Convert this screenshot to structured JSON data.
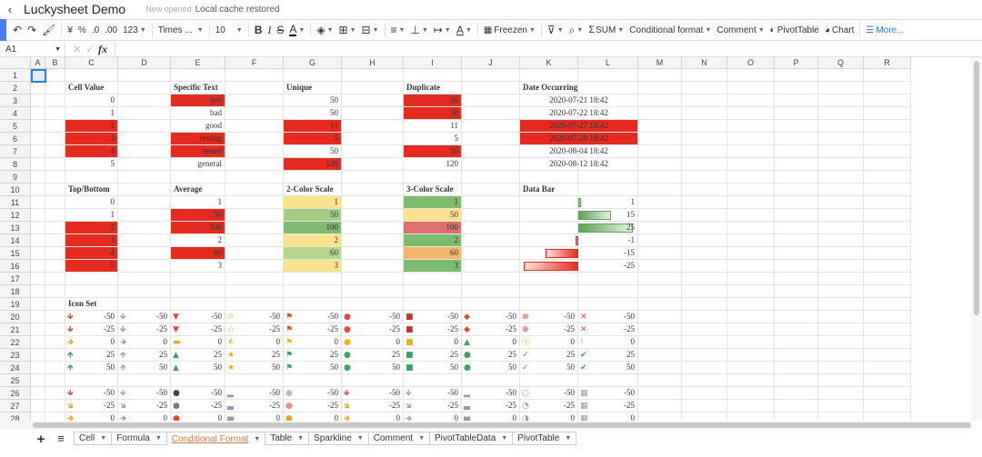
{
  "app": {
    "title": "Luckysheet Demo",
    "status_saved": "New opened",
    "status_cache": "Local cache restored"
  },
  "toolbar": {
    "currency": "¥",
    "percent": "%",
    "dec_less": ".0",
    "dec_more": ".00",
    "num_format": "123",
    "font": "Times ...",
    "size": "10",
    "bold": "B",
    "italic": "I",
    "strike": "S",
    "font_color": "A",
    "text_rotate": "A",
    "freeze": "Freezen",
    "sum": "SUM",
    "cond_format": "Conditional format",
    "comment": "Comment",
    "pivot": "PivotTable",
    "chart": "Chart",
    "more": "More..."
  },
  "formula_bar": {
    "cell_ref": "A1",
    "fx": "fx",
    "value": ""
  },
  "columns": [
    "A",
    "B",
    "C",
    "D",
    "E",
    "F",
    "G",
    "H",
    "I",
    "J",
    "K",
    "L",
    "M",
    "N",
    "O",
    "P",
    "Q",
    "R"
  ],
  "rows": [
    "1",
    "2",
    "3",
    "4",
    "5",
    "6",
    "7",
    "8",
    "9",
    "10",
    "11",
    "12",
    "13",
    "14",
    "15",
    "16",
    "17",
    "18",
    "19",
    "20",
    "21",
    "22",
    "23",
    "24",
    "25",
    "26",
    "27",
    "28"
  ],
  "colors": {
    "red": "#e52b20",
    "light_green": "#b6d78b",
    "green": "#7dbb6e",
    "yellow": "#fbe28f",
    "orange": "#f5b56c",
    "mid_green": "#a6cc83",
    "pink_red": "#e0706b",
    "sel": "#2d7be5"
  },
  "cells": [
    {
      "r": 2,
      "c": "C",
      "v": "Cell Value",
      "bold": true
    },
    {
      "r": 2,
      "c": "E",
      "v": "Specific Text",
      "bold": true
    },
    {
      "r": 2,
      "c": "G",
      "v": "Unique",
      "bold": true
    },
    {
      "r": 2,
      "c": "I",
      "v": "Duplicate",
      "bold": true
    },
    {
      "r": 2,
      "c": "K",
      "v": "Date Occurring",
      "bold": true
    },
    {
      "r": 3,
      "c": "C",
      "v": "0",
      "align": "r"
    },
    {
      "r": 4,
      "c": "C",
      "v": "1",
      "align": "r"
    },
    {
      "r": 5,
      "c": "C",
      "v": "2",
      "align": "r",
      "bg": "red"
    },
    {
      "r": 6,
      "c": "C",
      "v": "3",
      "align": "r",
      "bg": "red"
    },
    {
      "r": 7,
      "c": "C",
      "v": "4",
      "align": "r",
      "bg": "red"
    },
    {
      "r": 8,
      "c": "C",
      "v": "5",
      "align": "r"
    },
    {
      "r": 3,
      "c": "E",
      "v": "test",
      "align": "r",
      "bg": "red"
    },
    {
      "r": 4,
      "c": "E",
      "v": "bad",
      "align": "r"
    },
    {
      "r": 5,
      "c": "E",
      "v": "good",
      "align": "r"
    },
    {
      "r": 6,
      "c": "E",
      "v": "testing",
      "align": "r",
      "bg": "red"
    },
    {
      "r": 7,
      "c": "E",
      "v": "tested",
      "align": "r",
      "bg": "red"
    },
    {
      "r": 8,
      "c": "E",
      "v": "general",
      "align": "r"
    },
    {
      "r": 3,
      "c": "G",
      "v": "50",
      "align": "r"
    },
    {
      "r": 4,
      "c": "G",
      "v": "50",
      "align": "r"
    },
    {
      "r": 5,
      "c": "G",
      "v": "11",
      "align": "r",
      "bg": "red"
    },
    {
      "r": 6,
      "c": "G",
      "v": "5",
      "align": "r",
      "bg": "red"
    },
    {
      "r": 7,
      "c": "G",
      "v": "50",
      "align": "r"
    },
    {
      "r": 8,
      "c": "G",
      "v": "120",
      "align": "r",
      "bg": "red"
    },
    {
      "r": 3,
      "c": "I",
      "v": "50",
      "align": "r",
      "bg": "red"
    },
    {
      "r": 4,
      "c": "I",
      "v": "50",
      "align": "r",
      "bg": "red"
    },
    {
      "r": 5,
      "c": "I",
      "v": "11",
      "align": "r"
    },
    {
      "r": 6,
      "c": "I",
      "v": "5",
      "align": "r"
    },
    {
      "r": 7,
      "c": "I",
      "v": "50",
      "align": "r",
      "bg": "red"
    },
    {
      "r": 8,
      "c": "I",
      "v": "120",
      "align": "r"
    },
    {
      "r": 3,
      "c": "K",
      "v": "2020-07-21 18:42",
      "align": "c",
      "span": 2
    },
    {
      "r": 4,
      "c": "K",
      "v": "2020-07-22 18:42",
      "align": "c",
      "span": 2
    },
    {
      "r": 5,
      "c": "K",
      "v": "2020-07-27 18:42",
      "align": "c",
      "span": 2,
      "bg": "red"
    },
    {
      "r": 6,
      "c": "K",
      "v": "2020-07-28 18:42",
      "align": "c",
      "span": 2,
      "bg": "red"
    },
    {
      "r": 7,
      "c": "K",
      "v": "2020-08-04 18:42",
      "align": "c",
      "span": 2
    },
    {
      "r": 8,
      "c": "K",
      "v": "2020-08-12 18:42",
      "align": "c",
      "span": 2
    },
    {
      "r": 10,
      "c": "C",
      "v": "Top/Bottom",
      "bold": true
    },
    {
      "r": 10,
      "c": "E",
      "v": "Average",
      "bold": true
    },
    {
      "r": 10,
      "c": "G",
      "v": "2-Color Scale",
      "bold": true
    },
    {
      "r": 10,
      "c": "I",
      "v": "3-Color Scale",
      "bold": true
    },
    {
      "r": 10,
      "c": "K",
      "v": "Data Bar",
      "bold": true
    },
    {
      "r": 11,
      "c": "C",
      "v": "0",
      "align": "r"
    },
    {
      "r": 12,
      "c": "C",
      "v": "1",
      "align": "r"
    },
    {
      "r": 13,
      "c": "C",
      "v": "2",
      "align": "r",
      "bg": "red"
    },
    {
      "r": 14,
      "c": "C",
      "v": "3",
      "align": "r",
      "bg": "red"
    },
    {
      "r": 15,
      "c": "C",
      "v": "4",
      "align": "r",
      "bg": "red"
    },
    {
      "r": 16,
      "c": "C",
      "v": "5",
      "align": "r",
      "bg": "red"
    },
    {
      "r": 11,
      "c": "E",
      "v": "1",
      "align": "r"
    },
    {
      "r": 12,
      "c": "E",
      "v": "50",
      "align": "r",
      "bg": "red"
    },
    {
      "r": 13,
      "c": "E",
      "v": "100",
      "align": "r",
      "bg": "red"
    },
    {
      "r": 14,
      "c": "E",
      "v": "2",
      "align": "r"
    },
    {
      "r": 15,
      "c": "E",
      "v": "60",
      "align": "r",
      "bg": "red"
    },
    {
      "r": 16,
      "c": "E",
      "v": "3",
      "align": "r"
    },
    {
      "r": 11,
      "c": "G",
      "v": "1",
      "align": "r",
      "bg": "yellow"
    },
    {
      "r": 12,
      "c": "G",
      "v": "50",
      "align": "r",
      "bg": "mid_green"
    },
    {
      "r": 13,
      "c": "G",
      "v": "100",
      "align": "r",
      "bg": "green"
    },
    {
      "r": 14,
      "c": "G",
      "v": "2",
      "align": "r",
      "bg": "yellow"
    },
    {
      "r": 15,
      "c": "G",
      "v": "60",
      "align": "r",
      "bg": "light_green"
    },
    {
      "r": 16,
      "c": "G",
      "v": "3",
      "align": "r",
      "bg": "yellow"
    },
    {
      "r": 11,
      "c": "I",
      "v": "1",
      "align": "r",
      "bg": "green"
    },
    {
      "r": 12,
      "c": "I",
      "v": "50",
      "align": "r",
      "bg": "yellow"
    },
    {
      "r": 13,
      "c": "I",
      "v": "100",
      "align": "r",
      "bg": "pink_red"
    },
    {
      "r": 14,
      "c": "I",
      "v": "2",
      "align": "r",
      "bg": "green"
    },
    {
      "r": 15,
      "c": "I",
      "v": "60",
      "align": "r",
      "bg": "orange"
    },
    {
      "r": 16,
      "c": "I",
      "v": "3",
      "align": "r",
      "bg": "green"
    },
    {
      "r": 11,
      "c": "L",
      "v": "1",
      "align": "r",
      "bar": 1
    },
    {
      "r": 12,
      "c": "L",
      "v": "15",
      "align": "r",
      "bar": 15
    },
    {
      "r": 13,
      "c": "L",
      "v": "25",
      "align": "r",
      "bar": 25
    },
    {
      "r": 14,
      "c": "L",
      "v": "-1",
      "align": "r",
      "bar": -1
    },
    {
      "r": 15,
      "c": "L",
      "v": "-15",
      "align": "r",
      "bar": -15
    },
    {
      "r": 16,
      "c": "L",
      "v": "-25",
      "align": "r",
      "bar": -25
    },
    {
      "r": 19,
      "c": "C",
      "v": "Icon Set",
      "bold": true
    }
  ],
  "icon_rows": [
    {
      "r": 20,
      "vals": [
        "-50",
        "-50",
        "-50",
        "-50",
        "-50",
        "-50",
        "-50",
        "-50",
        "-50",
        "-50"
      ],
      "icons": [
        "down-red",
        "down-grey",
        "tri-down-red",
        "star-empty",
        "flag-red",
        "circle-red",
        "square-red",
        "diamond-red",
        "x-circle-red",
        "x-red"
      ]
    },
    {
      "r": 21,
      "vals": [
        "-25",
        "-25",
        "-25",
        "-25",
        "-25",
        "-25",
        "-25",
        "-25",
        "-25",
        "-25"
      ],
      "icons": [
        "down-red",
        "down-grey",
        "tri-down-red",
        "star-empty",
        "flag-red",
        "circle-red",
        "square-red",
        "diamond-red",
        "x-circle-red",
        "x-red"
      ]
    },
    {
      "r": 22,
      "vals": [
        "0",
        "0",
        "0",
        "0",
        "0",
        "0",
        "0",
        "0",
        "0",
        "0"
      ],
      "icons": [
        "right-orange",
        "right-grey",
        "dash-orange",
        "star-half",
        "flag-yellow",
        "circle-yellow",
        "square-yellow",
        "tri-up-green",
        "excl-circle-yellow",
        "excl-yellow"
      ]
    },
    {
      "r": 23,
      "vals": [
        "25",
        "25",
        "25",
        "25",
        "25",
        "25",
        "25",
        "25",
        "25",
        "25"
      ],
      "icons": [
        "up-green",
        "up-grey",
        "tri-up-green",
        "star-full",
        "flag-green",
        "circle-green",
        "square-green",
        "circle-green",
        "check-circle-green",
        "check-green"
      ]
    },
    {
      "r": 24,
      "vals": [
        "50",
        "50",
        "50",
        "50",
        "50",
        "50",
        "50",
        "50",
        "50",
        "50"
      ],
      "icons": [
        "up-green",
        "up-grey",
        "tri-up-green",
        "star-full",
        "flag-green",
        "circle-green",
        "square-green",
        "circle-green",
        "check-circle-green",
        "check-green"
      ]
    },
    {
      "r": 26,
      "vals": [
        "-50",
        "-50",
        "-50",
        "-50",
        "-50",
        "-50",
        "-50",
        "-50",
        "-50",
        "-50"
      ],
      "icons": [
        "down-red",
        "down-grey",
        "circle-black",
        "bars-1",
        "circle-grey",
        "down-red",
        "down-grey",
        "bars-1",
        "circle-empty",
        "quarters-1"
      ]
    },
    {
      "r": 27,
      "vals": [
        "-25",
        "-25",
        "-25",
        "-25",
        "-25",
        "-25",
        "-25",
        "-25",
        "-25",
        "-25"
      ],
      "icons": [
        "down-right-orange",
        "down-right-grey",
        "circle-grey-dark",
        "bars-2",
        "circle-pink",
        "down-right-orange",
        "down-right-grey",
        "bars-2",
        "circle-quarter",
        "quarters-2"
      ]
    },
    {
      "r": 28,
      "vals": [
        "0",
        "0",
        "0",
        "0",
        "0",
        "0",
        "0",
        "0",
        "0",
        "0"
      ],
      "icons": [
        "right-orange",
        "right-grey",
        "circle-red-dark",
        "bars-3",
        "circle-orange",
        "right-orange",
        "right-grey",
        "bars-3",
        "circle-half",
        "quarters-3"
      ]
    }
  ],
  "sheets": [
    {
      "name": "Cell",
      "active": false
    },
    {
      "name": "Formula",
      "active": false
    },
    {
      "name": "Conditional Format",
      "active": true
    },
    {
      "name": "Table",
      "active": false
    },
    {
      "name": "Sparkline",
      "active": false
    },
    {
      "name": "Comment",
      "active": false
    },
    {
      "name": "PivotTableData",
      "active": false
    },
    {
      "name": "PivotTable",
      "active": false
    }
  ]
}
